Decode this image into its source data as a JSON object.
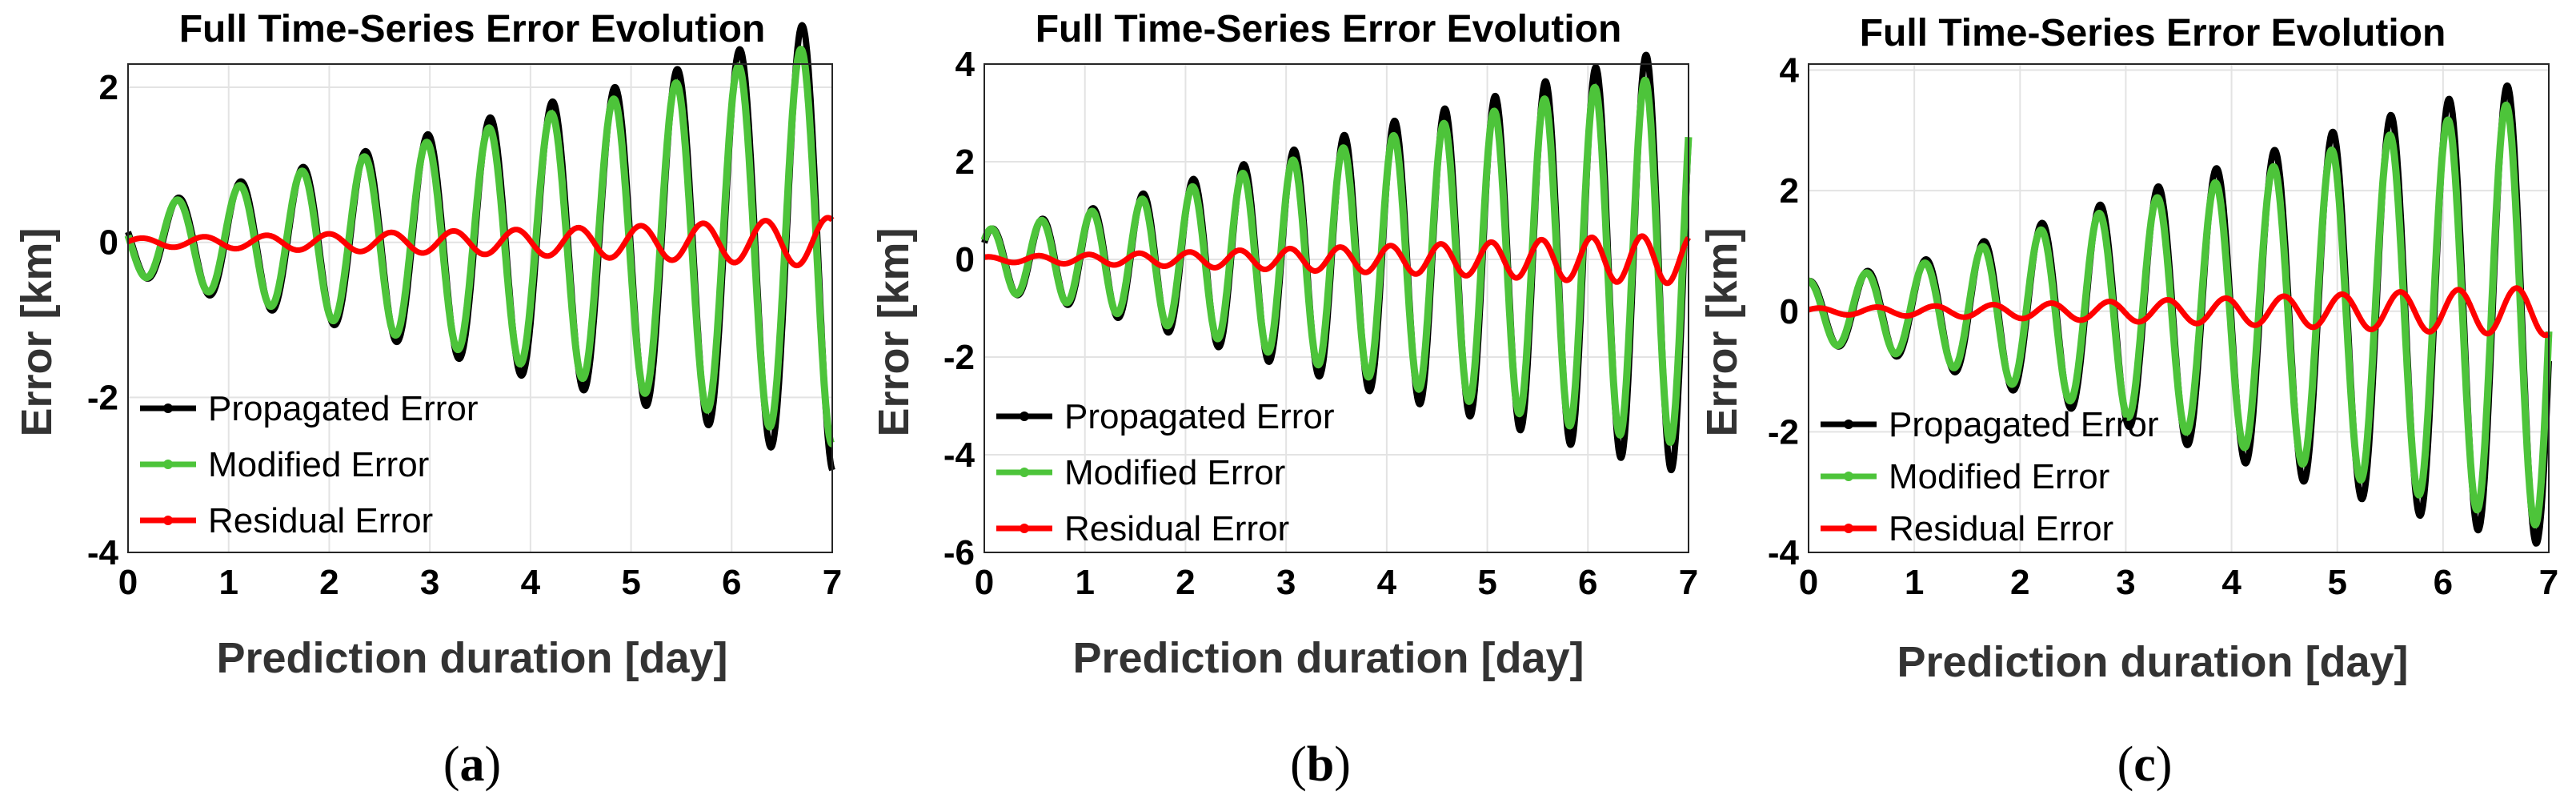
{
  "chart_data": [
    {
      "type": "line",
      "title": "Full Time-Series Error Evolution",
      "xlabel": "Prediction duration [day]",
      "ylabel": "Error [km]",
      "xlim": [
        0,
        7
      ],
      "ylim": [
        -4,
        2.3
      ],
      "xticks": [
        0,
        1,
        2,
        3,
        4,
        5,
        6,
        7
      ],
      "yticks": [
        2,
        0,
        -2,
        -4
      ],
      "grid": true,
      "legend_position": "bottom-left",
      "caption": "(a)",
      "period_days": 0.62,
      "x": [
        0,
        1,
        2,
        3,
        4,
        5,
        6,
        7
      ],
      "series": [
        {
          "name": "Propagated Error",
          "color": "#000000",
          "amplitude": [
            0.4,
            0.75,
            1.05,
            1.4,
            1.75,
            2.05,
            2.45,
            2.95
          ]
        },
        {
          "name": "Modified Error",
          "color": "#4dc43a",
          "amplitude": [
            0.4,
            0.7,
            1.0,
            1.3,
            1.6,
            1.9,
            2.25,
            2.6
          ]
        },
        {
          "name": "Residual Error",
          "color": "#ff0000",
          "amplitude": [
            0.05,
            0.08,
            0.11,
            0.14,
            0.17,
            0.21,
            0.26,
            0.32
          ]
        }
      ]
    },
    {
      "type": "line",
      "title": "Full Time-Series Error Evolution",
      "xlabel": "Prediction duration [day]",
      "ylabel": "Error [km]",
      "xlim": [
        0,
        7
      ],
      "ylim": [
        -6,
        4
      ],
      "xticks": [
        0,
        1,
        2,
        3,
        4,
        5,
        6,
        7
      ],
      "yticks": [
        4,
        2,
        0,
        -2,
        -4,
        -6
      ],
      "grid": true,
      "legend_position": "bottom-left",
      "caption": "(b)",
      "period_days": 0.5,
      "x": [
        0,
        1,
        2,
        3,
        4,
        5,
        6,
        7
      ],
      "series": [
        {
          "name": "Propagated Error",
          "color": "#000000",
          "amplitude": [
            0.6,
            1.0,
            1.6,
            2.2,
            2.8,
            3.3,
            3.9,
            4.4
          ]
        },
        {
          "name": "Modified Error",
          "color": "#4dc43a",
          "amplitude": [
            0.6,
            0.95,
            1.45,
            2.0,
            2.5,
            3.0,
            3.5,
            3.8
          ]
        },
        {
          "name": "Residual Error",
          "color": "#ff0000",
          "amplitude": [
            0.05,
            0.1,
            0.15,
            0.22,
            0.28,
            0.35,
            0.45,
            0.5
          ]
        }
      ]
    },
    {
      "type": "line",
      "title": "Full Time-Series Error Evolution",
      "xlabel": "Prediction duration [day]",
      "ylabel": "Error [km]",
      "xlim": [
        0,
        7
      ],
      "ylim": [
        -4,
        4.1
      ],
      "xticks": [
        0,
        1,
        2,
        3,
        4,
        5,
        6,
        7
      ],
      "yticks": [
        4,
        2,
        0,
        -2,
        -4
      ],
      "grid": true,
      "legend_position": "bottom-left",
      "caption": "(c)",
      "period_days": 0.55,
      "x": [
        0,
        1,
        2,
        3,
        4,
        5,
        6,
        7
      ],
      "series": [
        {
          "name": "Propagated Error",
          "color": "#000000",
          "amplitude": [
            0.5,
            0.8,
            1.35,
            1.9,
            2.45,
            3.0,
            3.5,
            3.9
          ]
        },
        {
          "name": "Modified Error",
          "color": "#4dc43a",
          "amplitude": [
            0.5,
            0.75,
            1.25,
            1.75,
            2.2,
            2.7,
            3.15,
            3.6
          ]
        },
        {
          "name": "Residual Error",
          "color": "#ff0000",
          "amplitude": [
            0.05,
            0.08,
            0.12,
            0.17,
            0.22,
            0.28,
            0.35,
            0.4
          ]
        }
      ]
    }
  ]
}
